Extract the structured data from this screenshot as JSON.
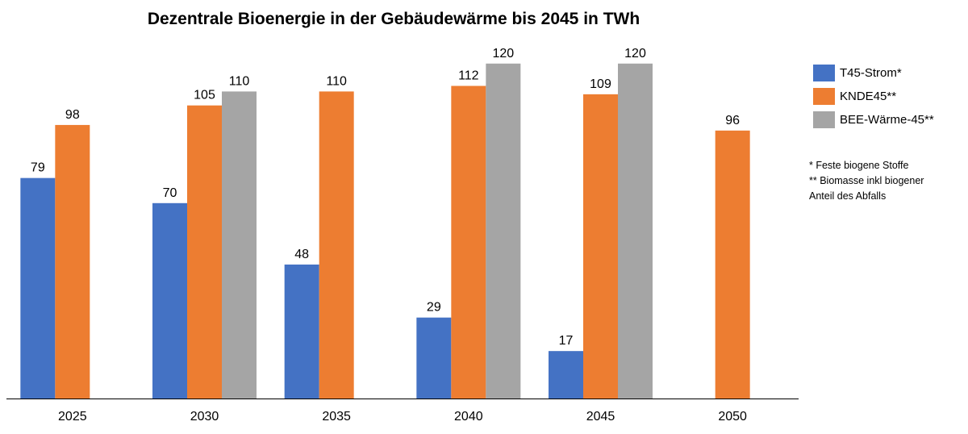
{
  "chart_data": {
    "type": "bar",
    "title": "Dezentrale Bioenergie in der Gebäudewärme bis 2045 in TWh",
    "categories": [
      "2025",
      "2030",
      "2035",
      "2040",
      "2045",
      "2050"
    ],
    "series": [
      {
        "name": "T45-Strom*",
        "color": "#4472c4",
        "values": [
          79,
          70,
          48,
          29,
          17,
          null
        ]
      },
      {
        "name": "KNDE45**",
        "color": "#ed7d31",
        "values": [
          98,
          105,
          110,
          112,
          109,
          96
        ]
      },
      {
        "name": "BEE-Wärme-45**",
        "color": "#a5a5a5",
        "values": [
          null,
          110,
          null,
          120,
          120,
          null
        ]
      }
    ],
    "ylim": [
      0,
      120
    ],
    "grid": false,
    "legend_position": "right",
    "data_labels": true
  },
  "notes": [
    "* Feste biogene Stoffe",
    "** Biomasse inkl biogener",
    "Anteil des Abfalls"
  ]
}
